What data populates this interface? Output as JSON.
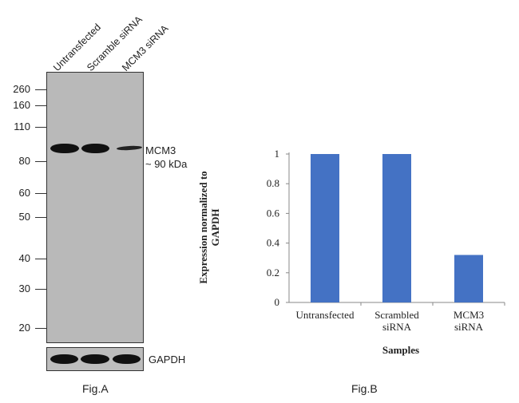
{
  "fig_a": {
    "lane_labels": [
      "Untransfected",
      "Scramble siRNA",
      "MCM3 siRNA"
    ],
    "mw_markers": [
      "260",
      "160",
      "110",
      "80",
      "60",
      "50",
      "40",
      "30",
      "20"
    ],
    "band_label_line1": "MCM3",
    "band_label_line2": "~ 90 kDa",
    "loading_control_label": "GAPDH",
    "caption": "Fig.A"
  },
  "fig_b": {
    "caption": "Fig.B"
  },
  "chart_data": {
    "type": "bar",
    "categories": [
      "Untransfected",
      "Scrambled siRNA",
      "MCM3 siRNA"
    ],
    "category_lines": [
      [
        "Untransfected"
      ],
      [
        "Scrambled",
        "siRNA"
      ],
      [
        "MCM3",
        "siRNA"
      ]
    ],
    "values": [
      1.0,
      1.0,
      0.32
    ],
    "xlabel": "Samples",
    "ylabel": "Expression normalized to GAPDH",
    "ylim": [
      0,
      1
    ],
    "yticks": [
      0,
      0.2,
      0.4,
      0.6,
      0.8,
      1
    ],
    "ytick_labels": [
      "0",
      "0.2",
      "0.4",
      "0.6",
      "0.8",
      "1"
    ],
    "bar_color": "#4472c4",
    "grid": false,
    "legend": "none"
  }
}
